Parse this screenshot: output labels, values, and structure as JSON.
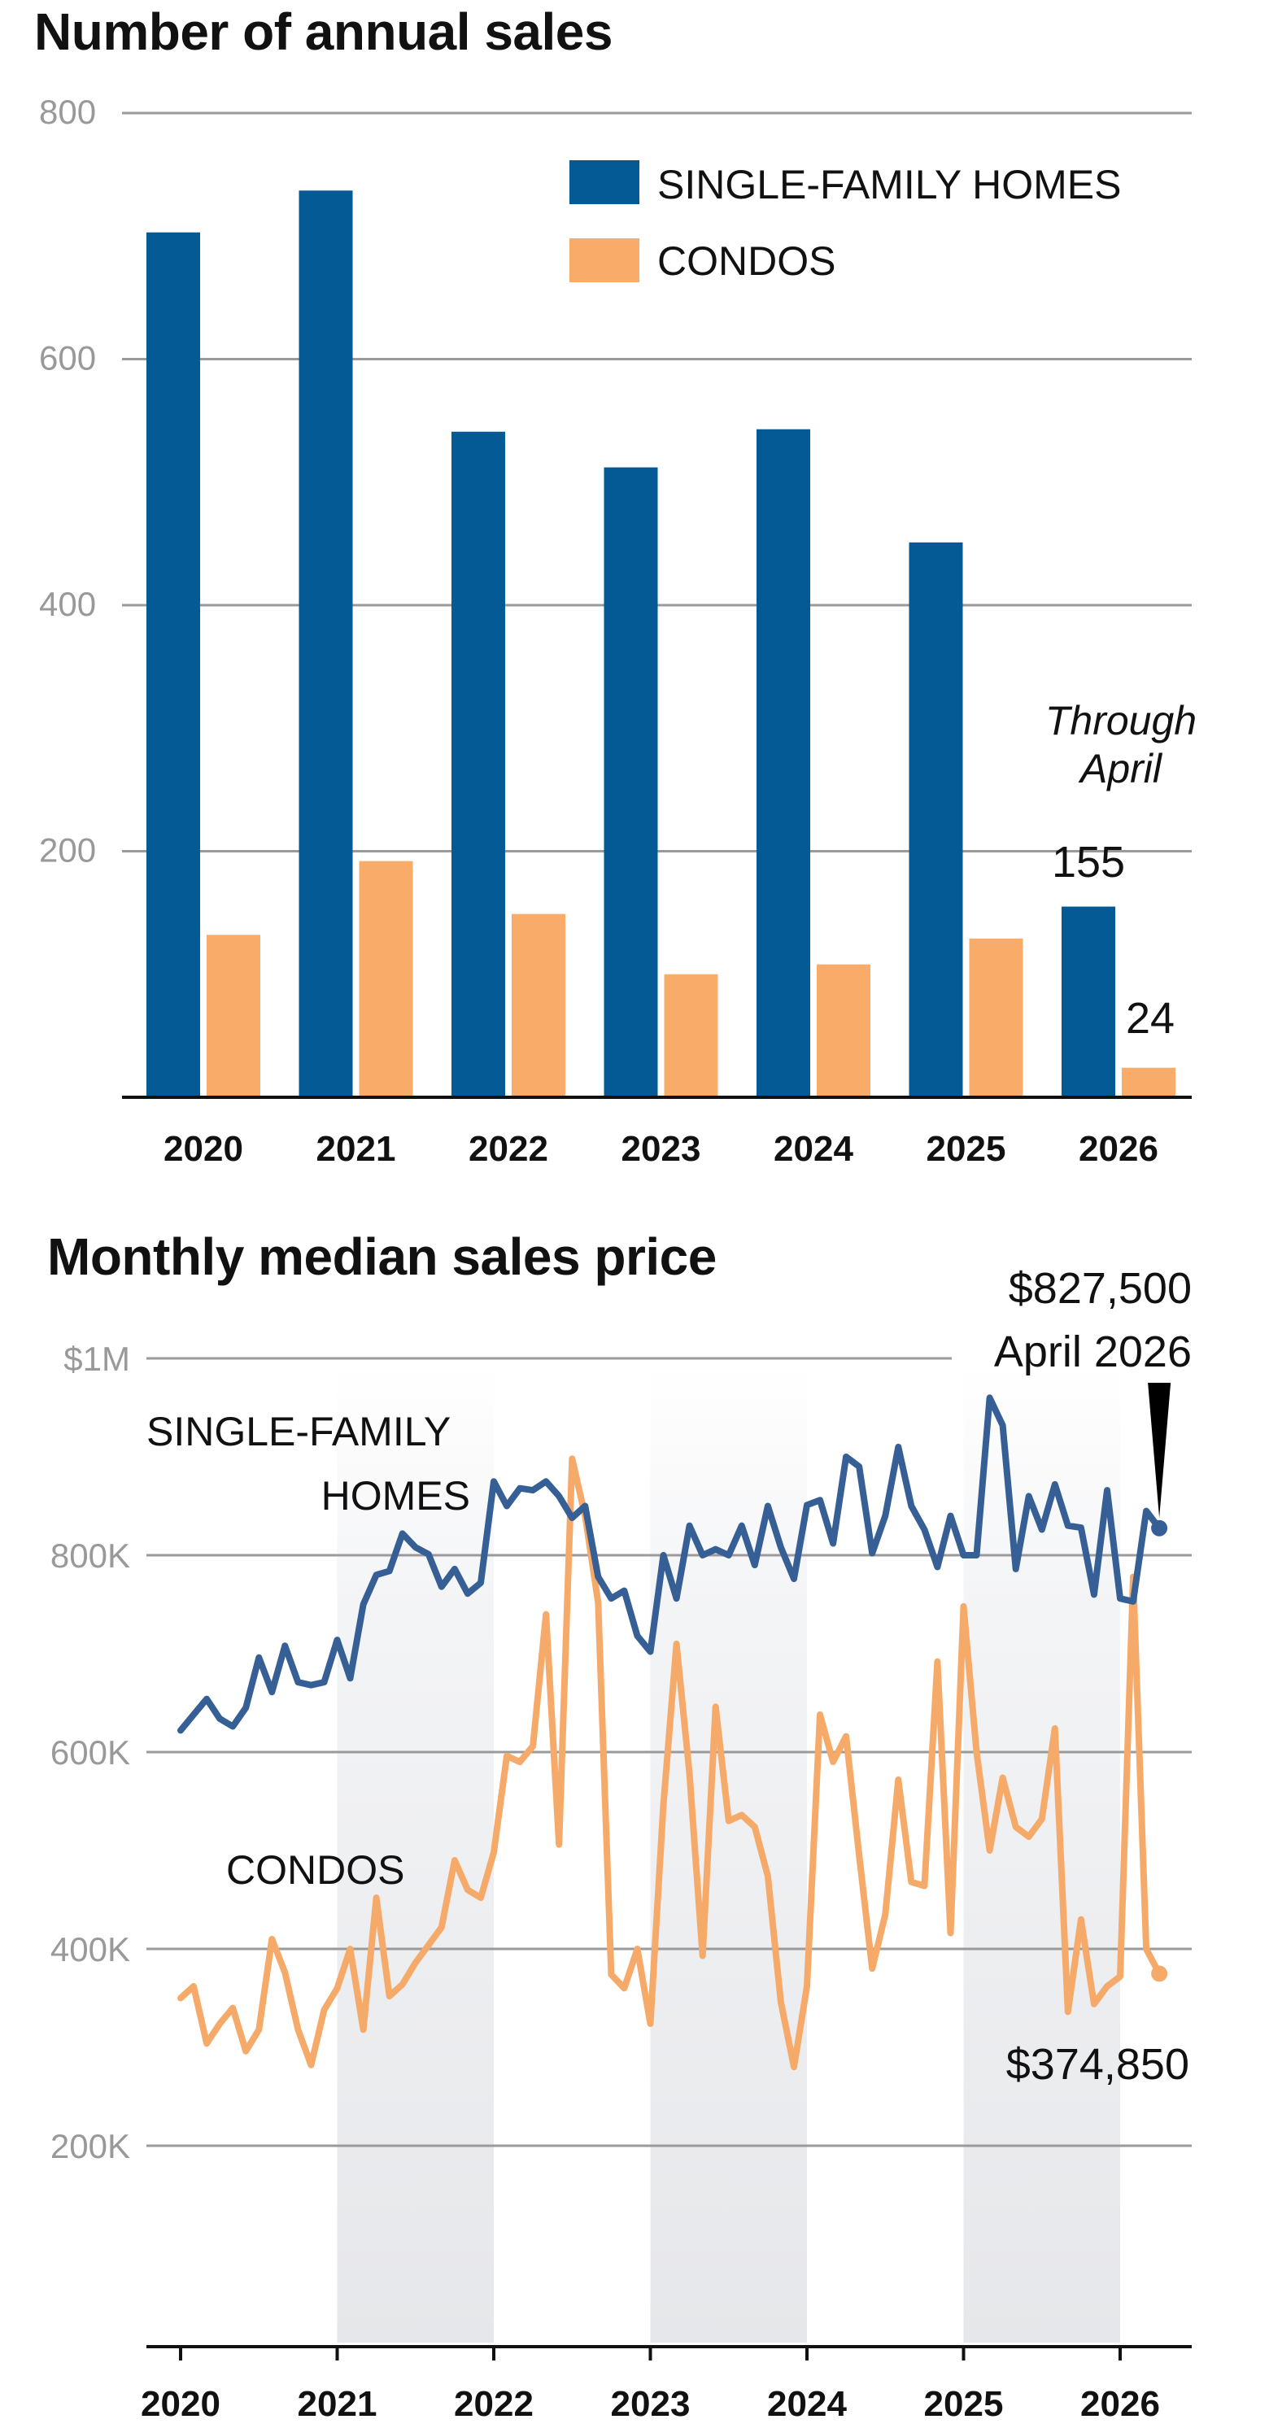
{
  "charts": {
    "annual": {
      "title": "Number of annual sales"
    },
    "monthly": {
      "title": "Monthly median sales price"
    }
  },
  "colors": {
    "single_family_bar": "#045a94",
    "condo_bar": "#f9ac6a",
    "single_family_line": "#365f96",
    "condo_line": "#f6aa6a",
    "grid": "#9a9a9a",
    "axis_text": "#999999",
    "shade": "#e6e7ea"
  },
  "chart_data": [
    {
      "type": "bar",
      "title": "Number of annual sales",
      "categories": [
        "2020",
        "2021",
        "2022",
        "2023",
        "2024",
        "2025",
        "2026"
      ],
      "series": [
        {
          "name": "SINGLE-FAMILY HOMES",
          "values": [
            703,
            737,
            541,
            512,
            543,
            451,
            155
          ]
        },
        {
          "name": "CONDOS",
          "values": [
            132,
            192,
            149,
            100,
            108,
            129,
            24
          ]
        }
      ],
      "ylim": [
        0,
        800
      ],
      "yticks": [
        200,
        400,
        600,
        800
      ],
      "grid": true,
      "legend": "top-right",
      "annotations": [
        {
          "text": "Through April",
          "category": "2026"
        },
        {
          "text": "155",
          "category": "2026",
          "series": "SINGLE-FAMILY HOMES"
        },
        {
          "text": "24",
          "category": "2026",
          "series": "CONDOS"
        }
      ]
    },
    {
      "type": "line",
      "title": "Monthly median sales price",
      "x_start": "2020-01",
      "x_ticks": [
        "2020",
        "2021",
        "2022",
        "2023",
        "2024",
        "2025",
        "2026"
      ],
      "ylim": [
        0,
        1000000
      ],
      "y_tick_values": [
        200000,
        400000,
        600000,
        800000,
        1000000
      ],
      "y_tick_labels": [
        "200K",
        "400K",
        "600K",
        "800K",
        "$1M"
      ],
      "grid": true,
      "shaded_years": [
        "2021",
        "2023",
        "2025"
      ],
      "series": [
        {
          "name": "SINGLE-FAMILY HOMES",
          "values": [
            622000,
            638000,
            654000,
            634000,
            626000,
            645000,
            696000,
            661000,
            708000,
            671000,
            668000,
            671000,
            714000,
            675000,
            750000,
            780000,
            784000,
            822000,
            808000,
            801000,
            768000,
            786000,
            761000,
            772000,
            875000,
            850000,
            868000,
            866000,
            875000,
            860000,
            838000,
            850000,
            778000,
            756000,
            764000,
            718000,
            702000,
            800000,
            756000,
            830000,
            800000,
            806000,
            800000,
            830000,
            790000,
            850000,
            808000,
            776000,
            851000,
            856000,
            812000,
            900000,
            890000,
            802000,
            840000,
            910000,
            850000,
            826000,
            788000,
            840000,
            800000,
            800000,
            960000,
            932000,
            786000,
            860000,
            826000,
            872000,
            830000,
            828000,
            760000,
            866000,
            756000,
            753000,
            845000,
            827500
          ]
        },
        {
          "name": "CONDOS",
          "values": [
            350000,
            362000,
            304000,
            324000,
            340000,
            296000,
            318000,
            410000,
            376000,
            318000,
            282000,
            338000,
            360000,
            400000,
            318000,
            452000,
            352000,
            364000,
            386000,
            404000,
            422000,
            490000,
            460000,
            452000,
            498000,
            596000,
            590000,
            606000,
            740000,
            506000,
            898000,
            840000,
            752000,
            374000,
            360000,
            400000,
            324000,
            546000,
            710000,
            578000,
            393000,
            646000,
            530000,
            536000,
            524000,
            474000,
            346000,
            280000,
            362000,
            638000,
            590000,
            616000,
            495000,
            380000,
            435000,
            572000,
            468000,
            464000,
            692000,
            416000,
            748000,
            600000,
            500000,
            574000,
            524000,
            514000,
            532000,
            624000,
            336000,
            430000,
            344000,
            362000,
            372000,
            778000,
            400000,
            374850
          ]
        }
      ],
      "annotations": [
        {
          "text": "$827,500",
          "series": "SINGLE-FAMILY HOMES"
        },
        {
          "text": "April 2026",
          "series": "SINGLE-FAMILY HOMES"
        },
        {
          "text": "$374,850",
          "series": "CONDOS"
        },
        {
          "text": "SINGLE-FAMILY",
          "series": "SINGLE-FAMILY HOMES"
        },
        {
          "text": "HOMES",
          "series": "SINGLE-FAMILY HOMES"
        },
        {
          "text": "CONDOS",
          "series": "CONDOS"
        }
      ]
    }
  ]
}
